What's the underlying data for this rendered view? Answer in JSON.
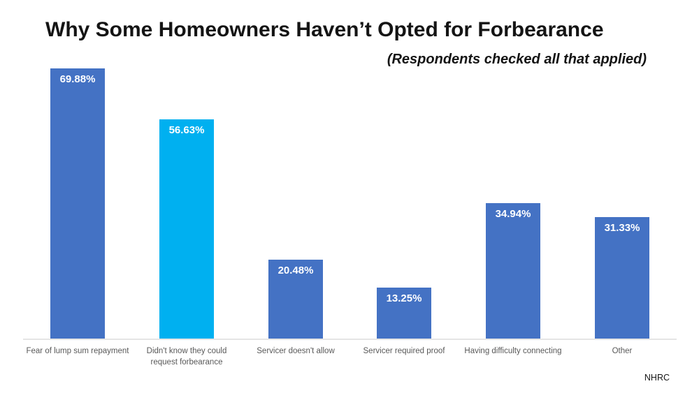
{
  "title": "Why Some Homeowners Haven’t Opted for Forbearance",
  "subtitle": "(Respondents checked all that applied)",
  "source": "NHRC",
  "colors": {
    "bar_default": "#4472C4",
    "bar_highlight": "#00B0F0",
    "value_label_text": "#FFFFFF",
    "axis_line": "#E5E5E5",
    "category_text": "#595959",
    "title_text": "#141414",
    "background": "#FFFFFF"
  },
  "chart_data": {
    "type": "bar",
    "categories": [
      "Fear of lump sum repayment",
      "Didn't know they could request forbearance",
      "Servicer doesn't allow",
      "Servicer required proof",
      "Having difficulty connecting",
      "Other"
    ],
    "values": [
      69.88,
      56.63,
      20.48,
      13.25,
      34.94,
      31.33
    ],
    "value_labels": [
      "69.88%",
      "56.63%",
      "20.48%",
      "13.25%",
      "34.94%",
      "31.33%"
    ],
    "highlighted_index": 1,
    "title": "Why Some Homeowners Haven’t Opted for Forbearance",
    "subtitle": "(Respondents checked all that applied)",
    "xlabel": "",
    "ylabel": "",
    "ylim": [
      0,
      75
    ],
    "grid": false,
    "legend": false,
    "y_axis_visible": false,
    "data_labels": "inside-top"
  }
}
